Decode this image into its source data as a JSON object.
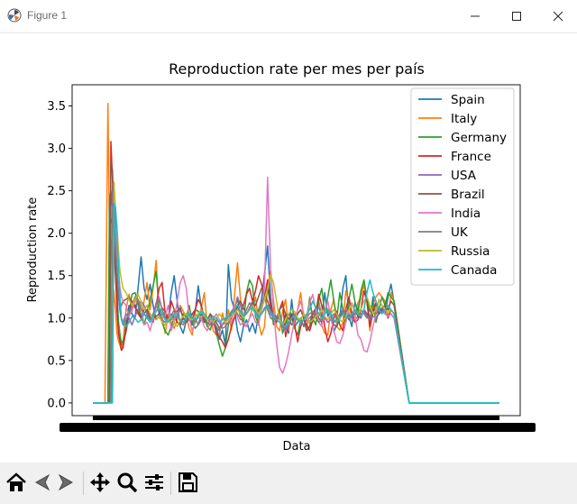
{
  "window": {
    "title": "Figure 1"
  },
  "chart_data": {
    "type": "line",
    "title": "Reproduction rate per mes per país",
    "xlabel": "Data",
    "ylabel": "Reproduction rate",
    "ylim": [
      -0.15,
      3.75
    ],
    "yticks": [
      0.0,
      0.5,
      1.0,
      1.5,
      2.0,
      2.5,
      3.0,
      3.5
    ],
    "ytick_labels": [
      "0.0",
      "0.5",
      "1.0",
      "1.5",
      "2.0",
      "2.5",
      "3.0",
      "3.5"
    ],
    "x_note": "dense overlapping date tick labels (unreadable)",
    "legend_position": "top-right",
    "colors": {
      "Spain": "#1f77b4",
      "Italy": "#ff7f0e",
      "Germany": "#2ca02c",
      "France": "#d62728",
      "USA": "#9467bd",
      "Brazil": "#8c564b",
      "India": "#e377c2",
      "UK": "#7f7f7f",
      "Russia": "#bcbd22",
      "Canada": "#17becf"
    },
    "x": [
      0,
      8,
      16,
      20,
      22,
      24,
      26,
      28,
      30,
      32,
      34,
      36,
      38,
      40,
      44,
      48,
      52,
      56,
      60,
      64,
      68,
      72,
      76,
      80,
      84,
      88,
      92,
      96,
      100,
      104,
      108,
      112,
      116,
      120,
      124,
      128,
      132,
      136,
      140,
      144,
      148,
      152,
      156,
      160,
      164,
      168,
      172,
      176,
      180,
      184,
      188,
      192,
      196,
      200,
      204,
      208,
      212,
      216,
      220,
      224,
      228,
      232,
      236,
      240,
      244,
      248,
      252,
      256,
      260,
      264,
      268,
      272,
      276,
      280,
      284,
      288,
      292,
      296,
      300,
      304,
      308,
      312,
      316,
      320,
      324,
      328,
      332,
      336,
      340,
      344,
      348,
      352,
      356,
      360,
      364,
      368,
      372,
      376,
      380,
      384,
      388,
      392,
      396,
      400,
      420,
      440,
      460,
      480,
      500,
      520,
      540
    ],
    "series": [
      {
        "name": "Spain",
        "values": [
          0,
          0,
          0,
          0,
          2.12,
          2.12,
          2.18,
          2.05,
          1.65,
          1.35,
          0.95,
          0.8,
          0.7,
          0.65,
          0.92,
          1.15,
          1.05,
          1.0,
          1.35,
          1.72,
          1.35,
          1.22,
          1.4,
          1.15,
          0.98,
          1.02,
          1.05,
          1.0,
          0.98,
          1.3,
          1.5,
          1.2,
          0.9,
          0.82,
          0.97,
          1.0,
          0.92,
          1.08,
          1.38,
          1.12,
          0.95,
          0.98,
          1.05,
          0.95,
          0.9,
          0.75,
          0.86,
          0.68,
          1.63,
          1.22,
          1.1,
          0.85,
          0.72,
          0.9,
          0.98,
          0.84,
          0.94,
          0.82,
          1.06,
          1.22,
          1.52,
          1.85,
          1.25,
          0.96,
          0.98,
          1.08,
          0.9,
          1.05,
          0.82,
          1.22,
          0.9,
          0.95,
          1.0,
          0.9,
          1.0,
          0.94,
          1.05,
          1.1,
          1.2,
          1.0,
          1.3,
          1.02,
          1.1,
          0.84,
          0.92,
          1.0,
          1.35,
          1.5,
          1.02,
          0.9,
          1.18,
          1.1,
          1.25,
          1.4,
          1.2,
          0.95,
          1.25,
          1.0,
          1.05,
          1.1,
          1.05,
          1.25,
          1.4,
          1.18,
          0,
          0,
          0,
          0,
          0,
          0,
          0
        ]
      },
      {
        "name": "Italy",
        "values": [
          0,
          0,
          0,
          3.53,
          2.05,
          1.88,
          1.45,
          1.3,
          1.1,
          0.82,
          0.73,
          0.68,
          0.62,
          0.7,
          1.1,
          1.28,
          1.08,
          1.25,
          1.15,
          0.98,
          1.2,
          1.42,
          1.1,
          1.35,
          1.68,
          1.0,
          1.02,
          0.82,
          1.05,
          0.95,
          0.88,
          0.98,
          1.15,
          1.08,
          1.02,
          0.88,
          0.8,
          1.05,
          1.0,
          1.12,
          1.3,
          0.9,
          1.02,
          0.85,
          0.8,
          0.8,
          1.06,
          0.92,
          1.1,
          0.86,
          1.25,
          1.65,
          1.22,
          0.92,
          0.9,
          1.0,
          1.12,
          1.25,
          0.95,
          0.8,
          0.9,
          1.38,
          1.55,
          1.2,
          0.9,
          0.85,
          1.08,
          1.22,
          0.86,
          1.05,
          0.9,
          1.1,
          1.3,
          1.0,
          0.85,
          1.25,
          0.95,
          1.1,
          1.2,
          0.92,
          0.82,
          0.8,
          1.1,
          1.22,
          0.9,
          0.86,
          0.95,
          1.32,
          1.18,
          0.98,
          1.02,
          1.18,
          1.25,
          1.4,
          1.2,
          0.85,
          1.15,
          1.25,
          1.3,
          1.25,
          1.2,
          1.0,
          1.3,
          1.2,
          0,
          0,
          0,
          0,
          0,
          0,
          0
        ]
      },
      {
        "name": "Germany",
        "values": [
          0,
          0,
          0,
          0,
          2.4,
          2.5,
          2.3,
          1.9,
          1.5,
          1.2,
          0.95,
          0.8,
          0.7,
          0.73,
          0.83,
          1.05,
          1.28,
          1.3,
          1.18,
          1.02,
          0.92,
          1.05,
          1.22,
          1.38,
          1.55,
          1.1,
          0.95,
          0.85,
          0.8,
          0.9,
          1.02,
          0.95,
          0.92,
          1.05,
          1.0,
          1.15,
          0.95,
          0.88,
          0.92,
          1.05,
          1.0,
          0.9,
          0.86,
          1.0,
          0.82,
          0.68,
          0.55,
          0.65,
          0.92,
          1.05,
          1.12,
          1.22,
          1.05,
          0.92,
          1.3,
          1.45,
          1.38,
          1.02,
          0.92,
          1.15,
          1.28,
          1.35,
          1.15,
          0.92,
          0.98,
          1.08,
          0.82,
          0.94,
          1.05,
          1.0,
          0.88,
          0.8,
          0.98,
          1.05,
          1.0,
          1.22,
          1.0,
          0.92,
          1.22,
          1.35,
          1.05,
          1.25,
          1.45,
          1.2,
          1.0,
          1.3,
          1.1,
          0.95,
          1.22,
          1.4,
          1.2,
          1.05,
          1.32,
          1.45,
          1.22,
          1.08,
          1.18,
          0.95,
          1.1,
          1.25,
          1.15,
          1.3,
          1.25,
          1.2,
          0,
          0,
          0,
          0,
          0,
          0,
          0
        ]
      },
      {
        "name": "France",
        "values": [
          0,
          0,
          0,
          0,
          0,
          3.08,
          2.65,
          2.1,
          1.55,
          1.1,
          0.82,
          0.72,
          0.62,
          0.65,
          0.85,
          1.05,
          1.2,
          1.15,
          1.05,
          1.0,
          1.1,
          1.15,
          1.0,
          0.95,
          1.15,
          1.35,
          1.42,
          1.05,
          0.95,
          1.2,
          1.1,
          0.95,
          0.92,
          1.0,
          0.98,
          1.05,
          0.98,
          1.1,
          1.22,
          1.15,
          1.0,
          0.95,
          0.92,
          0.98,
          0.82,
          0.78,
          0.72,
          0.65,
          0.75,
          0.9,
          1.0,
          1.15,
          1.02,
          1.15,
          1.28,
          1.35,
          1.2,
          1.32,
          1.5,
          1.4,
          1.25,
          1.45,
          1.15,
          1.05,
          0.95,
          1.1,
          1.2,
          0.78,
          0.92,
          1.05,
          0.92,
          0.72,
          0.9,
          1.0,
          0.92,
          0.85,
          0.98,
          1.05,
          1.28,
          1.15,
          0.9,
          0.72,
          0.82,
          1.0,
          1.08,
          0.92,
          0.85,
          1.1,
          1.25,
          1.05,
          0.95,
          0.98,
          1.1,
          1.32,
          1.2,
          0.9,
          1.05,
          1.18,
          1.05,
          1.12,
          1.15,
          1.0,
          1.1,
          1.05,
          0,
          0,
          0,
          0,
          0,
          0,
          0
        ]
      },
      {
        "name": "USA",
        "values": [
          0,
          0,
          0,
          0,
          0,
          0,
          2.55,
          2.6,
          2.0,
          1.6,
          1.3,
          1.08,
          1.0,
          0.95,
          1.05,
          1.0,
          0.92,
          1.02,
          1.1,
          1.2,
          1.15,
          1.05,
          0.98,
          1.02,
          1.18,
          1.05,
          0.98,
          0.95,
          1.0,
          1.05,
          0.98,
          1.02,
          1.1,
          1.0,
          0.95,
          0.98,
          1.05,
          1.0,
          0.92,
          0.98,
          1.05,
          1.0,
          0.95,
          0.92,
          0.98,
          0.95,
          0.88,
          0.9,
          0.95,
          1.0,
          1.1,
          1.25,
          1.15,
          1.02,
          1.05,
          1.12,
          1.2,
          1.1,
          1.02,
          1.05,
          1.12,
          1.15,
          1.05,
          1.0,
          1.02,
          0.98,
          0.9,
          0.85,
          0.92,
          1.0,
          1.05,
          0.98,
          0.95,
          0.92,
          0.98,
          1.0,
          1.05,
          1.1,
          1.12,
          1.05,
          1.0,
          0.95,
          0.98,
          1.05,
          1.02,
          1.0,
          1.05,
          1.1,
          1.05,
          1.0,
          0.98,
          1.02,
          1.05,
          1.08,
          1.02,
          0.98,
          1.02,
          1.0,
          1.05,
          1.08,
          1.05,
          1.02,
          1.05,
          1.0,
          0,
          0,
          0,
          0,
          0,
          0,
          0
        ]
      },
      {
        "name": "Brazil",
        "values": [
          0,
          0,
          0,
          0,
          0,
          2.85,
          2.75,
          2.2,
          1.7,
          1.45,
          1.25,
          1.12,
          1.15,
          1.2,
          1.22,
          1.25,
          1.18,
          1.12,
          1.08,
          1.02,
          1.05,
          1.1,
          1.0,
          0.98,
          1.02,
          1.05,
          1.12,
          1.08,
          1.0,
          0.98,
          1.05,
          1.08,
          1.12,
          1.0,
          0.95,
          1.02,
          1.05,
          1.1,
          1.08,
          1.0,
          0.95,
          0.98,
          1.05,
          1.0,
          0.95,
          0.88,
          0.92,
          0.98,
          1.02,
          1.05,
          1.1,
          1.15,
          1.2,
          1.12,
          1.05,
          1.1,
          1.18,
          1.15,
          1.25,
          1.35,
          1.3,
          1.2,
          1.1,
          1.05,
          1.0,
          1.1,
          1.15,
          1.05,
          1.0,
          0.92,
          0.95,
          1.05,
          1.1,
          1.0,
          0.85,
          0.9,
          1.05,
          1.12,
          1.0,
          0.95,
          1.05,
          1.1,
          1.02,
          0.92,
          0.9,
          1.0,
          1.1,
          1.05,
          0.98,
          1.05,
          1.1,
          1.02,
          1.0,
          1.1,
          1.05,
          1.0,
          1.1,
          1.15,
          1.05,
          1.1,
          1.15,
          1.1,
          1.2,
          1.15,
          0,
          0,
          0,
          0,
          0,
          0,
          0
        ]
      },
      {
        "name": "India",
        "values": [
          0,
          0,
          0,
          0,
          0,
          0,
          0,
          2.2,
          2.0,
          1.8,
          1.55,
          1.35,
          1.25,
          1.2,
          1.15,
          1.02,
          1.1,
          1.2,
          1.22,
          1.15,
          0.92,
          0.95,
          0.85,
          1.0,
          1.12,
          1.25,
          1.1,
          1.02,
          1.15,
          0.85,
          0.95,
          1.2,
          1.42,
          1.5,
          1.35,
          1.0,
          0.85,
          0.95,
          1.05,
          1.0,
          0.9,
          0.85,
          0.95,
          1.0,
          1.05,
          0.98,
          0.92,
          0.95,
          1.0,
          0.95,
          1.15,
          1.0,
          0.92,
          0.95,
          0.9,
          1.0,
          1.05,
          0.95,
          0.92,
          1.1,
          1.35,
          2.66,
          1.6,
          1.1,
          0.7,
          0.42,
          0.35,
          0.45,
          0.6,
          0.8,
          0.98,
          1.1,
          1.2,
          1.05,
          0.98,
          1.18,
          1.28,
          1.1,
          0.95,
          0.9,
          1.08,
          1.2,
          1.0,
          0.85,
          0.72,
          0.7,
          0.8,
          0.95,
          1.1,
          1.18,
          1.05,
          0.8,
          0.75,
          0.62,
          0.6,
          0.72,
          0.9,
          1.05,
          1.22,
          1.15,
          1.05,
          1.02,
          1.05,
          1.0,
          0,
          0,
          0,
          0,
          0,
          0,
          0
        ]
      },
      {
        "name": "UK",
        "values": [
          0,
          0,
          0,
          0,
          0,
          0,
          2.3,
          2.2,
          1.85,
          1.55,
          1.3,
          1.1,
          0.98,
          0.92,
          0.98,
          1.05,
          1.15,
          1.25,
          1.22,
          1.1,
          1.05,
          1.02,
          0.98,
          1.05,
          1.15,
          1.22,
          1.1,
          1.0,
          0.98,
          1.02,
          1.1,
          1.05,
          0.95,
          0.92,
          0.98,
          1.05,
          1.0,
          0.95,
          1.02,
          1.1,
          1.05,
          0.95,
          0.92,
          0.98,
          0.9,
          0.85,
          0.92,
          0.98,
          1.02,
          1.08,
          1.12,
          1.05,
          0.98,
          1.02,
          1.1,
          1.18,
          1.12,
          1.05,
          1.1,
          1.18,
          1.25,
          1.1,
          1.0,
          0.98,
          1.02,
          1.05,
          0.92,
          0.88,
          0.95,
          1.0,
          1.05,
          1.0,
          0.95,
          0.98,
          1.02,
          1.05,
          1.08,
          1.0,
          0.95,
          0.98,
          1.05,
          1.1,
          1.02,
          0.95,
          0.98,
          1.05,
          1.1,
          1.05,
          1.0,
          1.02,
          1.05,
          1.08,
          1.1,
          1.05,
          1.0,
          1.02,
          1.08,
          1.05,
          1.1,
          1.12,
          1.08,
          1.05,
          1.1,
          1.05,
          0,
          0,
          0,
          0,
          0,
          0,
          0
        ]
      },
      {
        "name": "Russia",
        "values": [
          0,
          0,
          0,
          0,
          0,
          0,
          0,
          2.6,
          2.3,
          2.1,
          1.8,
          1.55,
          1.45,
          1.35,
          1.3,
          1.22,
          1.15,
          1.22,
          1.28,
          1.2,
          1.1,
          1.15,
          1.05,
          1.0,
          0.98,
          1.02,
          0.95,
          0.92,
          0.98,
          1.02,
          0.95,
          0.9,
          0.98,
          1.02,
          1.05,
          1.0,
          0.98,
          1.02,
          1.05,
          1.1,
          1.02,
          0.98,
          1.0,
          0.95,
          1.0,
          1.05,
          1.0,
          0.95,
          0.98,
          1.02,
          1.05,
          1.1,
          1.05,
          1.0,
          1.05,
          1.1,
          1.15,
          1.1,
          1.05,
          1.1,
          1.22,
          1.35,
          1.5,
          1.42,
          1.2,
          0.98,
          0.92,
          0.98,
          1.05,
          1.1,
          1.08,
          1.0,
          0.98,
          1.05,
          1.02,
          0.95,
          0.98,
          1.02,
          1.05,
          1.1,
          1.02,
          0.98,
          1.05,
          1.1,
          1.05,
          0.98,
          0.95,
          1.02,
          1.1,
          1.15,
          1.1,
          1.05,
          1.1,
          1.2,
          1.25,
          1.15,
          1.05,
          1.1,
          1.2,
          1.15,
          1.1,
          1.05,
          1.1,
          1.05,
          0,
          0,
          0,
          0,
          0,
          0,
          0
        ]
      },
      {
        "name": "Canada",
        "values": [
          0,
          0,
          0,
          0,
          0,
          0,
          0,
          2.35,
          2.3,
          2.0,
          1.6,
          1.25,
          1.0,
          0.92,
          0.9,
          0.95,
          1.02,
          1.0,
          0.95,
          0.98,
          1.05,
          1.0,
          0.95,
          1.02,
          1.08,
          1.12,
          1.05,
          0.98,
          0.95,
          1.0,
          1.05,
          1.02,
          0.98,
          0.95,
          1.0,
          1.05,
          1.0,
          0.98,
          1.02,
          1.08,
          1.05,
          1.0,
          0.98,
          1.02,
          1.0,
          0.95,
          0.98,
          1.0,
          1.02,
          1.05,
          1.1,
          1.15,
          1.08,
          1.02,
          1.05,
          1.1,
          1.12,
          1.05,
          1.0,
          1.05,
          1.1,
          1.15,
          1.08,
          1.02,
          0.98,
          0.95,
          0.92,
          0.9,
          0.95,
          1.0,
          1.02,
          0.98,
          0.95,
          0.98,
          1.05,
          1.1,
          1.2,
          1.12,
          1.05,
          1.0,
          1.05,
          1.1,
          1.05,
          0.98,
          0.95,
          1.0,
          1.05,
          1.02,
          1.0,
          1.05,
          1.1,
          1.05,
          1.02,
          1.1,
          1.3,
          1.45,
          1.3,
          1.2,
          1.1,
          1.05,
          1.1,
          1.15,
          1.1,
          1.05,
          0,
          0,
          0,
          0,
          0,
          0,
          0
        ]
      }
    ]
  }
}
